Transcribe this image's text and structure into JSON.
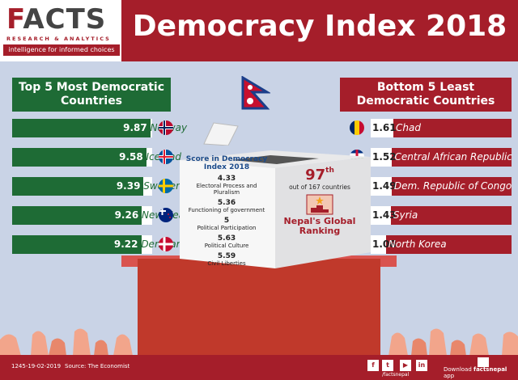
{
  "header": {
    "logo_main": "FACTS",
    "logo_sub": "RESEARCH & ANALYTICS",
    "logo_tag": "intelligence for informed choices",
    "title": "Democracy Index 2018"
  },
  "left_heading": "Top 5 Most Democratic Countries",
  "right_heading": "Bottom 5 Least Democratic Countries",
  "center": {
    "score_title": "Score in Democracy Index 2018",
    "items": [
      {
        "value": "4.33",
        "name": "Electoral Process and Pluralism"
      },
      {
        "value": "5.36",
        "name": "Functioning of government"
      },
      {
        "value": "5",
        "name": "Political Participation"
      },
      {
        "value": "5.63",
        "name": "Political Culture"
      },
      {
        "value": "5.59",
        "name": "Civil Liberties"
      }
    ],
    "rank": "97",
    "rank_suffix": "th",
    "rank_out_of": "out of 167 countries",
    "rank_label": "Nepal's Global Ranking"
  },
  "chart_data": [
    {
      "type": "bar",
      "categories": [
        "Norway",
        "Iceland",
        "Sweden",
        "New Zealand",
        "Denmark"
      ],
      "values": [
        9.87,
        9.58,
        9.39,
        9.26,
        9.22
      ],
      "ylim": [
        0,
        10
      ]
    },
    {
      "type": "bar",
      "categories": [
        "Chad",
        "Central African Republic",
        "Dem. Republic of Congo",
        "Syria",
        "North Korea"
      ],
      "values": [
        1.61,
        1.52,
        1.49,
        1.43,
        1.08
      ],
      "ylim": [
        0,
        10
      ]
    }
  ],
  "footer": {
    "id": "1245-19-02-2019",
    "source": "Source: The Economist",
    "handle": "/factsnepal",
    "download": "Download",
    "app_name": "factsnepal",
    "app": "app"
  },
  "colors": {
    "green": "#1e6b35",
    "red": "#a51e2a"
  }
}
